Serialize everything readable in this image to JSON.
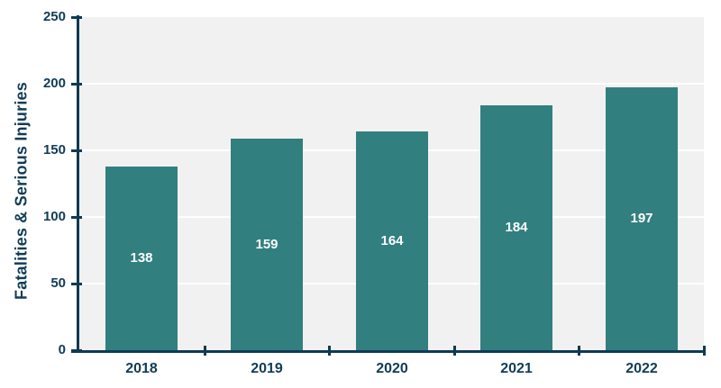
{
  "chart_data": {
    "type": "bar",
    "title": "",
    "categories": [
      "2018",
      "2019",
      "2020",
      "2021",
      "2022"
    ],
    "values": [
      138,
      159,
      164,
      184,
      197
    ],
    "xlabel": "",
    "ylabel": "Fatalities & Serious Injuries",
    "ylim": [
      0,
      250
    ],
    "yticks": [
      0,
      50,
      100,
      150,
      200,
      250
    ],
    "bar_value_labels": [
      "138",
      "159",
      "164",
      "184",
      "197"
    ],
    "grid": true,
    "legend_position": "none",
    "colors": {
      "bar": "#327f80",
      "axis": "#0f3a53",
      "text": "#113c56",
      "bar_label_text": "#ffffff",
      "plot_background": "#f1f1f1",
      "gridline": "#ffffff",
      "page_background": "#ffffff"
    }
  }
}
